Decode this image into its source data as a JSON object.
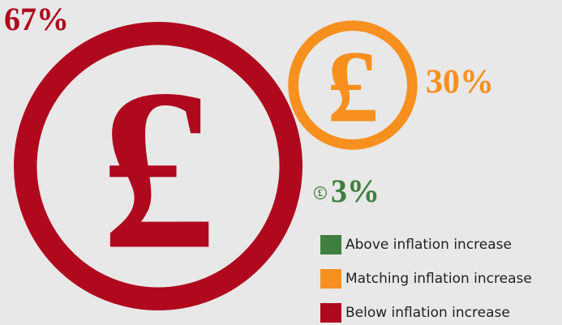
{
  "chart_data": {
    "type": "bubble",
    "symbol": "£",
    "categories": [
      "Above inflation increase",
      "Matching inflation increase",
      "Below inflation increase"
    ],
    "values": [
      3,
      30,
      67
    ],
    "value_labels": [
      "3%",
      "30%",
      "67%"
    ],
    "colors": [
      "#3f7f3f",
      "#f7901e",
      "#b0091e"
    ]
  }
}
